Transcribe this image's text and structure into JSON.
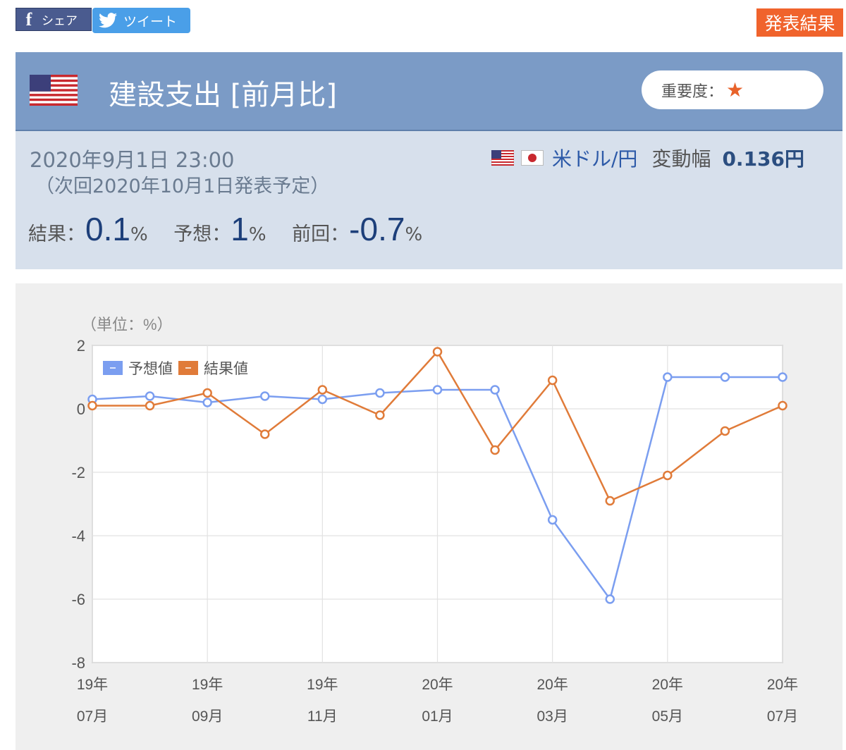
{
  "share": {
    "facebook_icon": "f",
    "facebook_label": "シェア",
    "twitter_label": "ツイート",
    "result_label": "発表結果"
  },
  "header": {
    "title": "建設支出 [前月比]",
    "importance_label": "重要度：",
    "importance_star": "★"
  },
  "info": {
    "datetime": "2020年9月1日 23:00",
    "next_release": "（次回2020年10月1日発表予定）",
    "pair_label": "米ドル/円",
    "range_label": "変動幅",
    "range_value": "0.136円",
    "result_label": "結果：",
    "result_value": "0.1",
    "forecast_label": "予想：",
    "forecast_value": "1",
    "previous_label": "前回：",
    "previous_value": "-0.7",
    "unit": "%"
  },
  "colors": {
    "header_bg": "#7b9bc6",
    "info_bg": "#d7e0ec",
    "forecast_line": "#7b9ef0",
    "result_line": "#e07b39",
    "accent_orange": "#f0632c"
  },
  "chart_data": {
    "type": "line",
    "unit_label": "（単位：%）",
    "x": [
      "19年07月",
      "19年08月",
      "19年09月",
      "19年10月",
      "19年11月",
      "19年12月",
      "20年01月",
      "20年02月",
      "20年03月",
      "20年04月",
      "20年05月",
      "20年06月",
      "20年07月"
    ],
    "tick_labels": [
      {
        "year": "19年",
        "month": "07月"
      },
      {
        "year": "19年",
        "month": "09月"
      },
      {
        "year": "19年",
        "month": "11月"
      },
      {
        "year": "20年",
        "month": "01月"
      },
      {
        "year": "20年",
        "month": "03月"
      },
      {
        "year": "20年",
        "month": "05月"
      },
      {
        "year": "20年",
        "month": "07月"
      }
    ],
    "series": [
      {
        "name": "予想値",
        "values": [
          0.3,
          0.4,
          0.2,
          0.4,
          0.3,
          0.5,
          0.6,
          0.6,
          -3.5,
          -6.0,
          1.0,
          1.0,
          1.0
        ]
      },
      {
        "name": "結果値",
        "values": [
          0.1,
          0.1,
          0.5,
          -0.8,
          0.6,
          -0.2,
          1.8,
          -1.3,
          0.9,
          -2.9,
          -2.1,
          -0.7,
          0.1
        ]
      }
    ],
    "ylim": [
      -8,
      2
    ],
    "yticks": [
      2,
      0,
      -2,
      -4,
      -6,
      -8
    ],
    "grid": true,
    "legend_position": "top-left"
  }
}
